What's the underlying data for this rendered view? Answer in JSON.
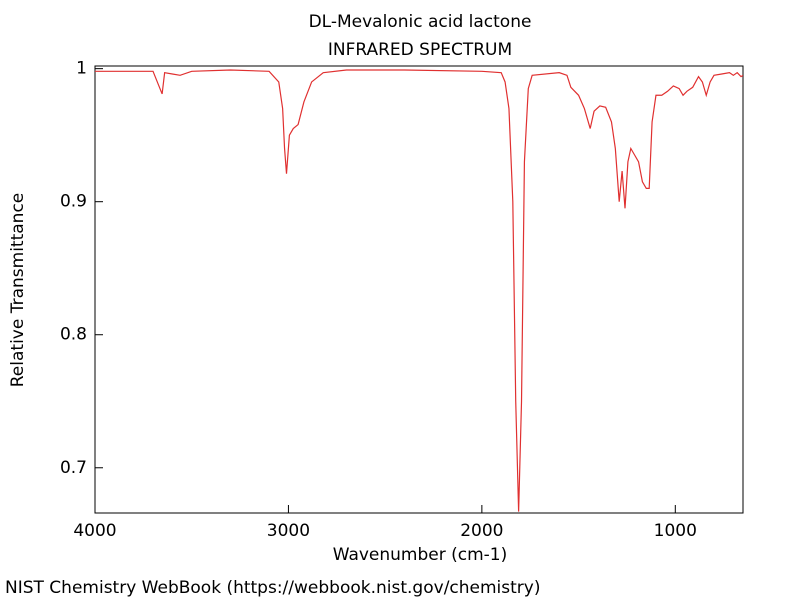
{
  "chart_data": {
    "type": "line",
    "title": "DL-Mevalonic acid lactone",
    "subtitle": "INFRARED SPECTRUM",
    "xlabel": "Wavenumber (cm-1)",
    "ylabel": "Relative Transmittance",
    "color": "#e03030",
    "x": [
      4000,
      3700,
      3653,
      3640,
      3600,
      3560,
      3500,
      3300,
      3100,
      3050,
      3030,
      3020,
      3010,
      2995,
      2975,
      2950,
      2920,
      2880,
      2820,
      2700,
      2400,
      2000,
      1900,
      1880,
      1860,
      1840,
      1825,
      1810,
      1795,
      1780,
      1760,
      1740,
      1600,
      1560,
      1540,
      1500,
      1470,
      1440,
      1420,
      1390,
      1360,
      1330,
      1310,
      1290,
      1275,
      1260,
      1245,
      1230,
      1210,
      1190,
      1170,
      1150,
      1135,
      1120,
      1100,
      1070,
      1040,
      1010,
      980,
      960,
      940,
      910,
      880,
      860,
      840,
      820,
      800,
      760,
      720,
      700,
      680,
      660,
      650
    ],
    "values": [
      0.998,
      0.998,
      0.981,
      0.997,
      0.996,
      0.995,
      0.998,
      0.999,
      0.998,
      0.99,
      0.97,
      0.94,
      0.921,
      0.95,
      0.955,
      0.958,
      0.975,
      0.99,
      0.997,
      0.999,
      0.999,
      0.998,
      0.997,
      0.99,
      0.97,
      0.9,
      0.75,
      0.667,
      0.75,
      0.93,
      0.985,
      0.995,
      0.997,
      0.995,
      0.986,
      0.98,
      0.97,
      0.955,
      0.968,
      0.972,
      0.971,
      0.96,
      0.94,
      0.9,
      0.923,
      0.895,
      0.93,
      0.94,
      0.935,
      0.93,
      0.915,
      0.91,
      0.91,
      0.96,
      0.98,
      0.98,
      0.983,
      0.987,
      0.985,
      0.98,
      0.983,
      0.986,
      0.994,
      0.99,
      0.98,
      0.99,
      0.995,
      0.996,
      0.997,
      0.995,
      0.997,
      0.994,
      0.995
    ],
    "xlim": [
      4000,
      650
    ],
    "ylim": [
      0.666,
      1.002
    ],
    "xticks": [
      4000,
      3000,
      2000,
      1000
    ],
    "yticks": [
      0.7,
      0.8,
      0.9,
      1
    ]
  },
  "footer": "NIST Chemistry WebBook (https://webbook.nist.gov/chemistry)"
}
